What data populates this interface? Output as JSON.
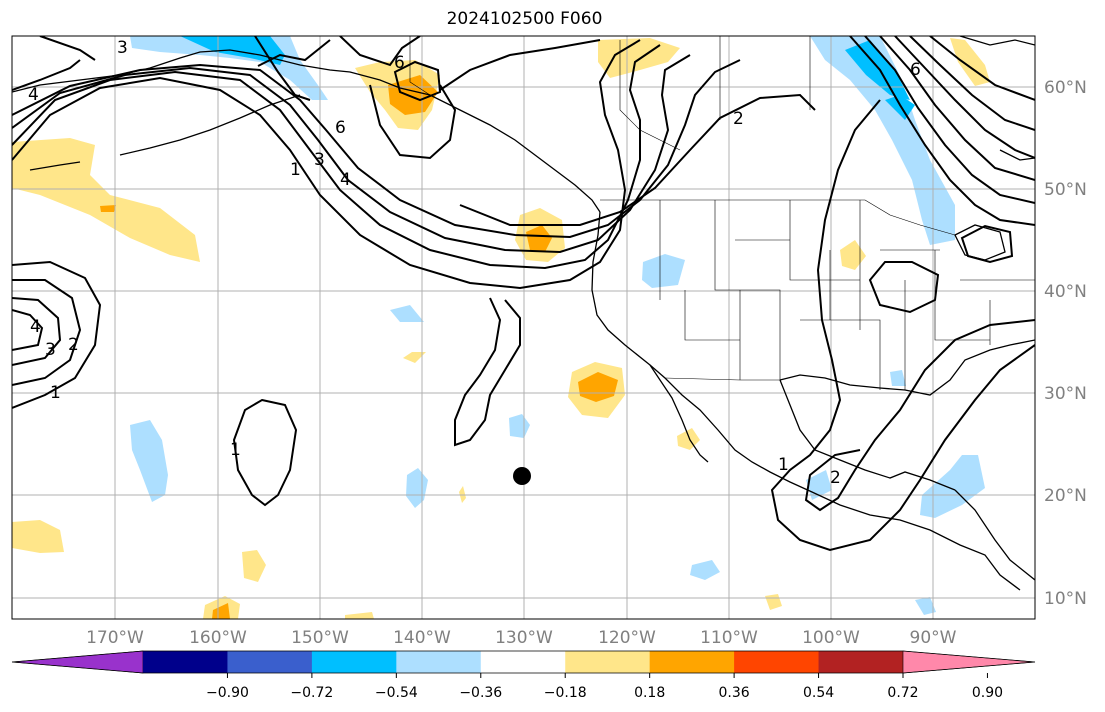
{
  "title": "2024102500 F060",
  "longitude_labels": [
    "170°W",
    "160°W",
    "150°W",
    "140°W",
    "130°W",
    "120°W",
    "110°W",
    "100°W",
    "90°W"
  ],
  "latitude_labels": [
    "60°N",
    "50°N",
    "40°N",
    "30°N",
    "20°N",
    "10°N"
  ],
  "contour_labels": {
    "c3_top": "3",
    "c4_left": "4",
    "c6_alaska": "6",
    "c6_gulf": "6",
    "c1_arc": "1",
    "c3_arc": "3",
    "c4_arc": "4",
    "c2_canada": "2",
    "c6_east": "6",
    "c4_west": "4",
    "c3_west": "3",
    "c2_west": "2",
    "c1_west": "1",
    "c1_mid": "1",
    "c1_mexico": "1",
    "c2_mexico": "2"
  },
  "colorbar": {
    "ticks": [
      "−0.90",
      "−0.72",
      "−0.54",
      "−0.36",
      "−0.18",
      "0.18",
      "0.36",
      "0.54",
      "0.72",
      "0.90"
    ],
    "colors": [
      "#9932CC",
      "#00008B",
      "#3A5FCD",
      "#00BFFF",
      "#ADDFFF",
      "#FFFFFF",
      "#FFE68A",
      "#FFA500",
      "#FF4500",
      "#B22222",
      "#FF88AA"
    ]
  },
  "marker": "storm-center-dot"
}
